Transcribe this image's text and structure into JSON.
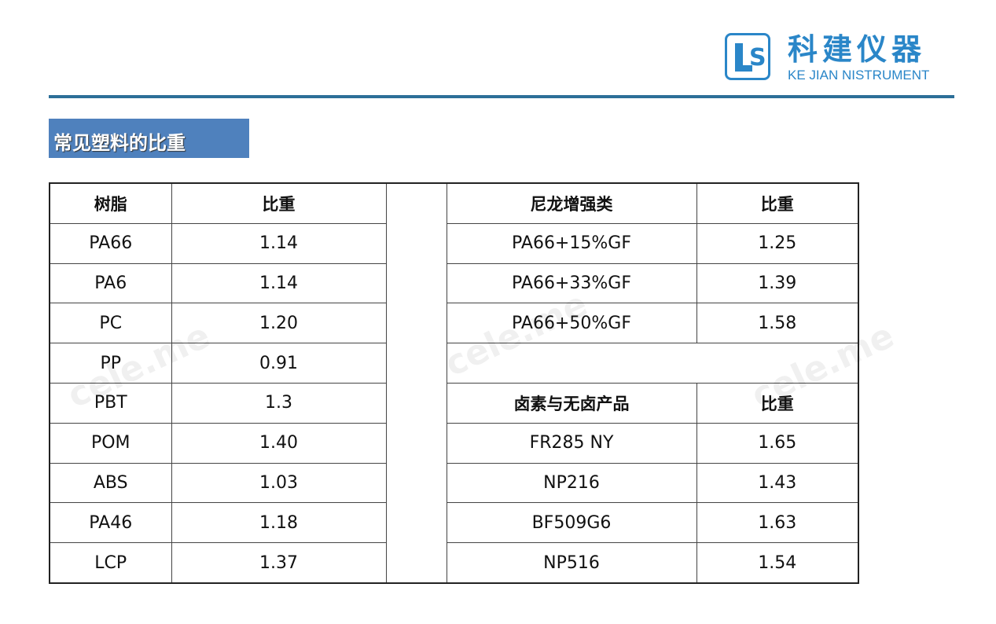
{
  "logo": {
    "name_cn": "科建仪器",
    "name_en": "KE JIAN NISTRUMENT",
    "mark": "LS",
    "color": "#2a86c8"
  },
  "title": "常见塑料的比重",
  "colors": {
    "title_bg": "#4f81bd",
    "rule": "#2c6f98"
  },
  "watermark": "cele.me",
  "left_table": {
    "headers": [
      "树脂",
      "比重"
    ],
    "rows": [
      [
        "PA66",
        "1.14"
      ],
      [
        "PA6",
        "1.14"
      ],
      [
        "PC",
        "1.20"
      ],
      [
        "PP",
        "0.91"
      ],
      [
        "PBT",
        "1.3"
      ],
      [
        "POM",
        "1.40"
      ],
      [
        "ABS",
        "1.03"
      ],
      [
        "PA46",
        "1.18"
      ],
      [
        "LCP",
        "1.37"
      ]
    ]
  },
  "nylon_table": {
    "headers": [
      "尼龙增强类",
      "比重"
    ],
    "rows": [
      [
        "PA66+15%GF",
        "1.25"
      ],
      [
        "PA66+33%GF",
        "1.39"
      ],
      [
        "PA66+50%GF",
        "1.58"
      ]
    ]
  },
  "halogen_table": {
    "headers": [
      "卤素与无卤产品",
      "比重"
    ],
    "rows": [
      [
        "FR285 NY",
        "1.65"
      ],
      [
        "NP216",
        "1.43"
      ],
      [
        "BF509G6",
        "1.63"
      ],
      [
        "NP516",
        "1.54"
      ]
    ]
  }
}
